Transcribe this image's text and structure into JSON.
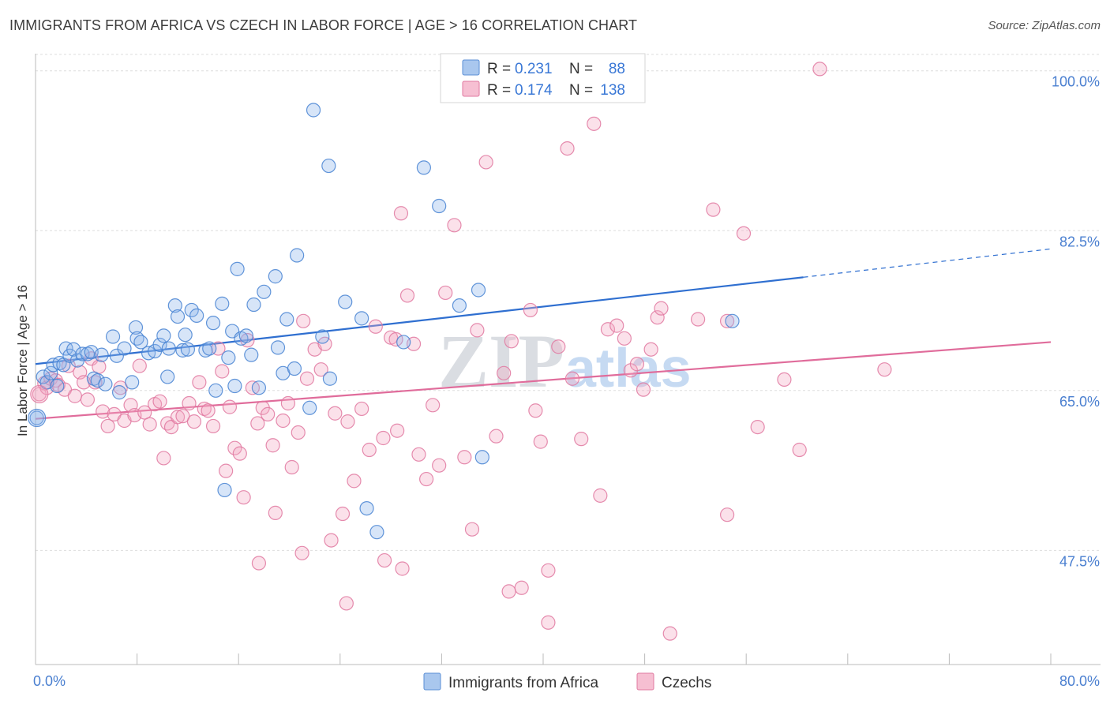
{
  "title": "IMMIGRANTS FROM AFRICA VS CZECH IN LABOR FORCE | AGE > 16 CORRELATION CHART",
  "source": "Source: ZipAtlas.com",
  "watermark": {
    "zip": "ZIP",
    "atlas": "atlas"
  },
  "legend": {
    "r_label": "R =",
    "n_label": "N =",
    "series": [
      {
        "r": "0.231",
        "n": "88",
        "color": "#5b8fd6",
        "fill": "#a9c7ee"
      },
      {
        "r": "0.174",
        "n": "138",
        "color": "#e07aa0",
        "fill": "#f6bfd2"
      }
    ]
  },
  "chart_data": {
    "type": "scatter",
    "title": "IMMIGRANTS FROM AFRICA VS CZECH IN LABOR FORCE | AGE > 16 CORRELATION CHART",
    "xlabel": "",
    "ylabel": "In Labor Force | Age > 16",
    "xlim": [
      0,
      80
    ],
    "ylim": [
      35,
      103
    ],
    "x_tick_labels": [
      "0.0%",
      "80.0%"
    ],
    "y_ticks": [
      47.5,
      65.0,
      82.5,
      100.0
    ],
    "y_tick_labels": [
      "47.5%",
      "65.0%",
      "82.5%",
      "100.0%"
    ],
    "grid": true,
    "legend_position": "top-center",
    "series": [
      {
        "name": "Immigrants from Africa",
        "color": "#3a78d6",
        "trend": {
          "x0": 0,
          "y0": 67.9,
          "x1": 60.5,
          "y1": 77.4,
          "dash_x1": 80,
          "dash_y1": 80.5
        },
        "points": [
          [
            0.1,
            62.0
          ],
          [
            0.6,
            66.5
          ],
          [
            0.9,
            65.9
          ],
          [
            1.2,
            66.9
          ],
          [
            1.4,
            67.8
          ],
          [
            1.7,
            65.5
          ],
          [
            1.9,
            68.0
          ],
          [
            2.2,
            67.8
          ],
          [
            2.4,
            69.6
          ],
          [
            2.7,
            68.8
          ],
          [
            3.0,
            69.5
          ],
          [
            3.3,
            68.3
          ],
          [
            3.7,
            69.0
          ],
          [
            4.1,
            69.0
          ],
          [
            4.4,
            69.2
          ],
          [
            4.6,
            66.3
          ],
          [
            4.9,
            66.1
          ],
          [
            5.2,
            68.9
          ],
          [
            5.5,
            65.7
          ],
          [
            6.1,
            70.9
          ],
          [
            6.4,
            68.8
          ],
          [
            6.6,
            64.8
          ],
          [
            7.0,
            69.6
          ],
          [
            7.6,
            65.9
          ],
          [
            7.9,
            71.9
          ],
          [
            8.0,
            70.7
          ],
          [
            8.3,
            70.3
          ],
          [
            8.9,
            69.1
          ],
          [
            9.4,
            69.3
          ],
          [
            9.8,
            70.0
          ],
          [
            10.1,
            71.0
          ],
          [
            10.4,
            66.5
          ],
          [
            10.5,
            69.6
          ],
          [
            11.0,
            74.3
          ],
          [
            11.2,
            73.1
          ],
          [
            11.6,
            69.4
          ],
          [
            11.8,
            71.1
          ],
          [
            12.0,
            69.5
          ],
          [
            12.3,
            73.8
          ],
          [
            12.7,
            73.2
          ],
          [
            13.4,
            69.4
          ],
          [
            13.7,
            69.6
          ],
          [
            14.0,
            72.4
          ],
          [
            14.2,
            65.0
          ],
          [
            14.7,
            74.5
          ],
          [
            14.9,
            54.1
          ],
          [
            15.2,
            68.6
          ],
          [
            15.5,
            71.5
          ],
          [
            15.7,
            65.5
          ],
          [
            15.9,
            78.3
          ],
          [
            16.2,
            70.7
          ],
          [
            16.6,
            71.0
          ],
          [
            17.0,
            68.9
          ],
          [
            17.2,
            74.4
          ],
          [
            17.6,
            65.3
          ],
          [
            18.0,
            75.8
          ],
          [
            18.9,
            77.5
          ],
          [
            19.1,
            69.7
          ],
          [
            19.5,
            66.9
          ],
          [
            19.8,
            72.8
          ],
          [
            20.4,
            67.4
          ],
          [
            20.6,
            79.8
          ],
          [
            21.6,
            63.1
          ],
          [
            21.9,
            95.7
          ],
          [
            22.6,
            70.9
          ],
          [
            23.1,
            89.6
          ],
          [
            23.2,
            66.3
          ],
          [
            24.4,
            74.7
          ],
          [
            25.7,
            72.9
          ],
          [
            26.1,
            52.1
          ],
          [
            26.9,
            49.5
          ],
          [
            29.0,
            70.3
          ],
          [
            30.6,
            89.4
          ],
          [
            31.8,
            85.2
          ],
          [
            33.4,
            74.3
          ],
          [
            34.9,
            76.0
          ],
          [
            35.2,
            57.7
          ],
          [
            54.9,
            72.6
          ]
        ]
      },
      {
        "name": "Czechs",
        "color": "#e06c9b",
        "trend": {
          "x0": 0,
          "y0": 61.9,
          "x1": 80,
          "y1": 70.3
        },
        "points": [
          [
            0.3,
            64.6
          ],
          [
            0.7,
            65.8
          ],
          [
            0.9,
            65.3
          ],
          [
            1.2,
            66.3
          ],
          [
            1.6,
            66.1
          ],
          [
            1.8,
            65.6
          ],
          [
            2.3,
            65.1
          ],
          [
            2.6,
            67.7
          ],
          [
            3.1,
            64.4
          ],
          [
            3.5,
            67.0
          ],
          [
            3.8,
            65.9
          ],
          [
            4.1,
            64.0
          ],
          [
            4.4,
            68.5
          ],
          [
            4.7,
            65.9
          ],
          [
            5.0,
            67.6
          ],
          [
            5.3,
            62.7
          ],
          [
            5.7,
            61.1
          ],
          [
            6.2,
            62.4
          ],
          [
            6.7,
            65.3
          ],
          [
            7.0,
            61.7
          ],
          [
            7.5,
            63.4
          ],
          [
            7.8,
            62.3
          ],
          [
            8.2,
            67.7
          ],
          [
            8.6,
            62.6
          ],
          [
            9.0,
            61.3
          ],
          [
            9.4,
            63.5
          ],
          [
            9.8,
            63.8
          ],
          [
            10.1,
            57.6
          ],
          [
            10.4,
            61.4
          ],
          [
            10.7,
            61.0
          ],
          [
            11.2,
            62.1
          ],
          [
            11.6,
            62.2
          ],
          [
            12.1,
            63.6
          ],
          [
            12.5,
            61.6
          ],
          [
            12.9,
            65.9
          ],
          [
            13.3,
            63.0
          ],
          [
            13.6,
            62.8
          ],
          [
            14.0,
            61.1
          ],
          [
            14.4,
            69.6
          ],
          [
            14.7,
            67.1
          ],
          [
            15.0,
            56.2
          ],
          [
            15.3,
            63.2
          ],
          [
            15.7,
            58.7
          ],
          [
            16.1,
            58.1
          ],
          [
            16.4,
            53.3
          ],
          [
            16.7,
            70.5
          ],
          [
            17.1,
            65.3
          ],
          [
            17.5,
            61.4
          ],
          [
            17.9,
            63.1
          ],
          [
            18.3,
            62.4
          ],
          [
            18.7,
            59.0
          ],
          [
            18.9,
            51.6
          ],
          [
            19.5,
            61.7
          ],
          [
            19.9,
            63.6
          ],
          [
            20.2,
            56.6
          ],
          [
            20.7,
            60.4
          ],
          [
            21.1,
            72.6
          ],
          [
            21.4,
            66.3
          ],
          [
            22.0,
            69.5
          ],
          [
            22.5,
            67.3
          ],
          [
            22.8,
            70.1
          ],
          [
            23.3,
            48.6
          ],
          [
            23.6,
            62.5
          ],
          [
            24.2,
            51.5
          ],
          [
            24.6,
            61.6
          ],
          [
            25.1,
            55.1
          ],
          [
            25.7,
            63.0
          ],
          [
            26.3,
            58.5
          ],
          [
            26.8,
            72.0
          ],
          [
            27.4,
            59.8
          ],
          [
            28.0,
            70.8
          ],
          [
            28.5,
            60.6
          ],
          [
            28.8,
            84.4
          ],
          [
            29.3,
            75.4
          ],
          [
            29.8,
            70.1
          ],
          [
            30.2,
            58.0
          ],
          [
            30.8,
            55.3
          ],
          [
            31.3,
            63.4
          ],
          [
            31.8,
            56.8
          ],
          [
            32.3,
            75.7
          ],
          [
            33.0,
            83.1
          ],
          [
            33.8,
            57.7
          ],
          [
            34.4,
            49.8
          ],
          [
            34.8,
            71.6
          ],
          [
            35.5,
            90.0
          ],
          [
            36.3,
            60.0
          ],
          [
            36.9,
            66.9
          ],
          [
            37.5,
            70.4
          ],
          [
            38.3,
            43.4
          ],
          [
            39.0,
            73.8
          ],
          [
            39.4,
            62.8
          ],
          [
            39.8,
            59.4
          ],
          [
            40.4,
            45.3
          ],
          [
            41.2,
            69.8
          ],
          [
            41.9,
            91.5
          ],
          [
            42.3,
            66.3
          ],
          [
            43.0,
            59.7
          ],
          [
            44.0,
            94.2
          ],
          [
            44.5,
            53.5
          ],
          [
            45.1,
            71.7
          ],
          [
            45.8,
            72.1
          ],
          [
            46.4,
            70.7
          ],
          [
            46.9,
            67.2
          ],
          [
            47.4,
            67.9
          ],
          [
            47.9,
            65.1
          ],
          [
            48.5,
            69.5
          ],
          [
            49.0,
            73.0
          ],
          [
            49.3,
            74.0
          ],
          [
            50.0,
            38.4
          ],
          [
            52.2,
            72.8
          ],
          [
            53.4,
            84.8
          ],
          [
            54.5,
            72.6
          ],
          [
            54.5,
            51.4
          ],
          [
            55.8,
            82.2
          ],
          [
            56.9,
            61.0
          ],
          [
            59.0,
            66.2
          ],
          [
            60.2,
            58.5
          ],
          [
            61.8,
            100.2
          ],
          [
            66.9,
            67.3
          ],
          [
            28.9,
            45.5
          ],
          [
            27.5,
            46.4
          ],
          [
            17.6,
            46.1
          ],
          [
            40.4,
            39.6
          ],
          [
            37.3,
            43.0
          ],
          [
            28.4,
            70.6
          ],
          [
            21.0,
            47.2
          ],
          [
            24.5,
            41.7
          ]
        ]
      }
    ]
  },
  "bottom_legend": [
    {
      "label": "Immigrants from Africa"
    },
    {
      "label": "Czechs"
    }
  ]
}
